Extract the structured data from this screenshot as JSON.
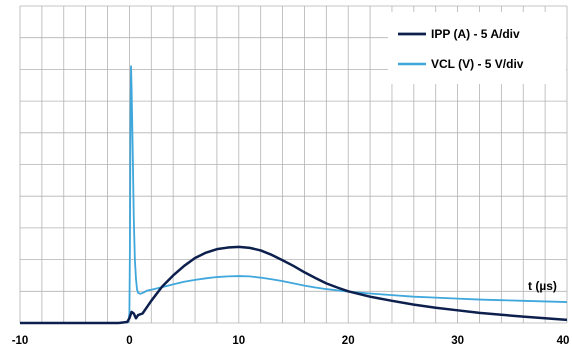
{
  "chart_data": {
    "type": "line",
    "title": "",
    "xlabel": "t (µs)",
    "ylabel": "",
    "xlim": [
      -10,
      40
    ],
    "ylim": [
      0,
      10
    ],
    "x_ticks": [
      "-10",
      "0",
      "10",
      "20",
      "30",
      "40"
    ],
    "grid": true,
    "legend_position": "top-right",
    "series": [
      {
        "name": "IPP (A) - 5 A/div",
        "color": "#0d1f4d",
        "points": [
          [
            -10,
            0
          ],
          [
            -1,
            0
          ],
          [
            -0.2,
            0.03
          ],
          [
            0,
            0.15
          ],
          [
            0.2,
            0.35
          ],
          [
            0.4,
            0.3
          ],
          [
            0.6,
            0.15
          ],
          [
            0.8,
            0.25
          ],
          [
            1.2,
            0.3
          ],
          [
            1.6,
            0.5
          ],
          [
            2,
            0.7
          ],
          [
            3,
            1.15
          ],
          [
            4,
            1.5
          ],
          [
            5,
            1.8
          ],
          [
            6,
            2.05
          ],
          [
            7,
            2.22
          ],
          [
            8,
            2.33
          ],
          [
            9,
            2.38
          ],
          [
            10,
            2.4
          ],
          [
            11,
            2.37
          ],
          [
            12,
            2.29
          ],
          [
            13,
            2.15
          ],
          [
            14,
            1.98
          ],
          [
            15,
            1.8
          ],
          [
            16,
            1.6
          ],
          [
            17,
            1.42
          ],
          [
            18,
            1.25
          ],
          [
            19,
            1.12
          ],
          [
            20,
            1.0
          ],
          [
            22,
            0.83
          ],
          [
            24,
            0.7
          ],
          [
            26,
            0.58
          ],
          [
            28,
            0.48
          ],
          [
            30,
            0.4
          ],
          [
            32,
            0.32
          ],
          [
            34,
            0.26
          ],
          [
            36,
            0.2
          ],
          [
            38,
            0.15
          ],
          [
            40,
            0.1
          ]
        ]
      },
      {
        "name": "VCL (V) - 5 V/div",
        "color": "#3fa7dc",
        "points": [
          [
            -10,
            0
          ],
          [
            -1,
            0
          ],
          [
            -0.1,
            0.03
          ],
          [
            0,
            0.3
          ],
          [
            0.05,
            2.5
          ],
          [
            0.1,
            6.5
          ],
          [
            0.15,
            8.1
          ],
          [
            0.2,
            7.4
          ],
          [
            0.3,
            5.5
          ],
          [
            0.4,
            3.3
          ],
          [
            0.5,
            2.0
          ],
          [
            0.6,
            1.4
          ],
          [
            0.7,
            1.05
          ],
          [
            0.8,
            0.95
          ],
          [
            1,
            0.92
          ],
          [
            1.3,
            0.96
          ],
          [
            1.6,
            1.02
          ],
          [
            2,
            1.05
          ],
          [
            3,
            1.13
          ],
          [
            4,
            1.22
          ],
          [
            5,
            1.3
          ],
          [
            6,
            1.36
          ],
          [
            7,
            1.41
          ],
          [
            8,
            1.45
          ],
          [
            9,
            1.47
          ],
          [
            10,
            1.48
          ],
          [
            11,
            1.47
          ],
          [
            12,
            1.43
          ],
          [
            13,
            1.38
          ],
          [
            14,
            1.32
          ],
          [
            15,
            1.25
          ],
          [
            16,
            1.18
          ],
          [
            17,
            1.12
          ],
          [
            18,
            1.07
          ],
          [
            19,
            1.03
          ],
          [
            20,
            0.99
          ],
          [
            22,
            0.93
          ],
          [
            24,
            0.88
          ],
          [
            26,
            0.83
          ],
          [
            28,
            0.8
          ],
          [
            30,
            0.77
          ],
          [
            32,
            0.74
          ],
          [
            34,
            0.72
          ],
          [
            36,
            0.7
          ],
          [
            38,
            0.68
          ],
          [
            40,
            0.66
          ]
        ]
      }
    ]
  }
}
